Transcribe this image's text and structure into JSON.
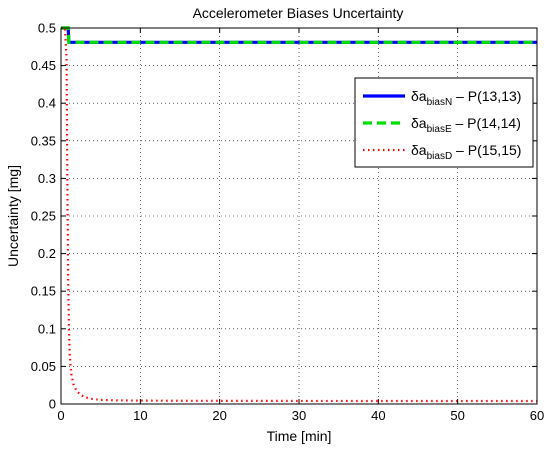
{
  "chart_data": {
    "type": "line",
    "title": "Accelerometer Biases Uncertainty",
    "xlabel": "Time [min]",
    "ylabel": "Uncertainty [mg]",
    "xlim": [
      0,
      60
    ],
    "ylim": [
      0,
      0.5
    ],
    "xticks": [
      0,
      10,
      20,
      30,
      40,
      50,
      60
    ],
    "yticks": [
      0,
      0.05,
      0.1,
      0.15,
      0.2,
      0.25,
      0.3,
      0.35,
      0.4,
      0.45,
      0.5
    ],
    "xtick_labels": [
      "0",
      "10",
      "20",
      "30",
      "40",
      "50",
      "60"
    ],
    "ytick_labels": [
      "0",
      "0.05",
      "0.1",
      "0.15",
      "0.2",
      "0.25",
      "0.3",
      "0.35",
      "0.4",
      "0.45",
      "0.5"
    ],
    "grid": true,
    "legend_position": "top-right",
    "series": [
      {
        "legend_base": "δa",
        "legend_sub": "biasN",
        "legend_suffix": " – P(13,13)",
        "color": "#0000ff",
        "style": "solid",
        "x": [
          0,
          0.9,
          1.0,
          60
        ],
        "y": [
          0.5,
          0.5,
          0.481,
          0.481
        ]
      },
      {
        "legend_base": "δa",
        "legend_sub": "biasE",
        "legend_suffix": " – P(14,14)",
        "color": "#00e000",
        "style": "dashed",
        "x": [
          0,
          0.9,
          1.0,
          60
        ],
        "y": [
          0.5,
          0.5,
          0.481,
          0.481
        ]
      },
      {
        "legend_base": "δa",
        "legend_sub": "biasD",
        "legend_suffix": " – P(15,15)",
        "color": "#ff0000",
        "style": "dotted",
        "x": [
          0,
          0.5,
          0.7,
          0.8,
          0.9,
          1.0,
          1.1,
          1.3,
          1.6,
          2.0,
          2.5,
          3,
          4,
          5,
          7,
          10,
          15,
          20,
          30,
          40,
          50,
          60
        ],
        "y": [
          0.5,
          0.5,
          0.46,
          0.3,
          0.17,
          0.1,
          0.065,
          0.04,
          0.025,
          0.017,
          0.012,
          0.009,
          0.0065,
          0.0055,
          0.0048,
          0.0045,
          0.0043,
          0.0042,
          0.0041,
          0.004,
          0.004,
          0.004
        ]
      }
    ]
  }
}
